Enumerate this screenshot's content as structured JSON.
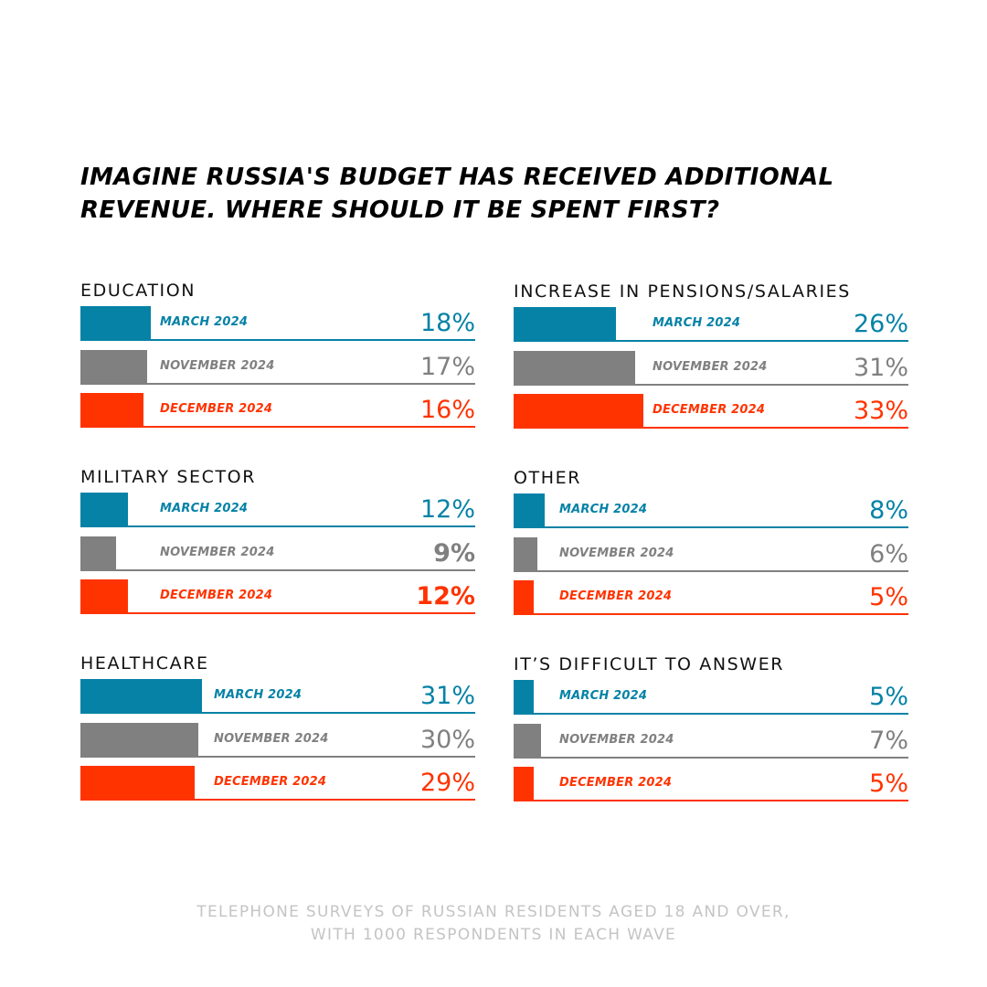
{
  "title": {
    "line1": "IMAGINE RUSSIA'S BUDGET HAS RECEIVED ADDITIONAL",
    "line2": "REVENUE. WHERE SHOULD IT BE SPENT FIRST?"
  },
  "colors": {
    "march": "#0582a6",
    "november": "#808080",
    "december": "#ff3300"
  },
  "chart_data": {
    "type": "bar",
    "orientation": "horizontal",
    "units": "%",
    "series_names": [
      "MARCH 2024",
      "NOVEMBER 2024",
      "DECEMBER 2024"
    ],
    "panels": [
      {
        "title": "EDUCATION",
        "label_offset": "near",
        "rows": [
          {
            "label": "MARCH 2024",
            "value": 18,
            "display": "18%",
            "bold": false
          },
          {
            "label": "NOVEMBER 2024",
            "value": 17,
            "display": "17%",
            "bold": false
          },
          {
            "label": "DECEMBER 2024",
            "value": 16,
            "display": "16%",
            "bold": false
          }
        ]
      },
      {
        "title": "INCREASE IN PENSIONS/SALARIES",
        "label_offset": "far",
        "rows": [
          {
            "label": "MARCH 2024",
            "value": 26,
            "display": "26%",
            "bold": false
          },
          {
            "label": "NOVEMBER 2024",
            "value": 31,
            "display": "31%",
            "bold": false
          },
          {
            "label": "DECEMBER 2024",
            "value": 33,
            "display": "33%",
            "bold": false
          }
        ]
      },
      {
        "title": "MILITARY SECTOR",
        "label_offset": "near",
        "rows": [
          {
            "label": "MARCH 2024",
            "value": 12,
            "display": "12%",
            "bold": false
          },
          {
            "label": "NOVEMBER 2024",
            "value": 9,
            "display": "9%",
            "bold": true
          },
          {
            "label": "DECEMBER 2024",
            "value": 12,
            "display": "12%",
            "bold": true
          }
        ]
      },
      {
        "title": "OTHER",
        "label_offset": "short",
        "rows": [
          {
            "label": "MARCH 2024",
            "value": 8,
            "display": "8%",
            "bold": false
          },
          {
            "label": "NOVEMBER 2024",
            "value": 6,
            "display": "6%",
            "bold": false
          },
          {
            "label": "DECEMBER 2024",
            "value": 5,
            "display": "5%",
            "bold": false
          }
        ]
      },
      {
        "title": "HEALTHCARE",
        "label_offset": "mid",
        "rows": [
          {
            "label": "MARCH 2024",
            "value": 31,
            "display": "31%",
            "bold": false
          },
          {
            "label": "NOVEMBER 2024",
            "value": 30,
            "display": "30%",
            "bold": false
          },
          {
            "label": "DECEMBER 2024",
            "value": 29,
            "display": "29%",
            "bold": false
          }
        ]
      },
      {
        "title": "IT’S DIFFICULT TO ANSWER",
        "label_offset": "short",
        "rows": [
          {
            "label": "MARCH 2024",
            "value": 5,
            "display": "5%",
            "bold": false
          },
          {
            "label": "NOVEMBER 2024",
            "value": 7,
            "display": "7%",
            "bold": false
          },
          {
            "label": "DECEMBER 2024",
            "value": 5,
            "display": "5%",
            "bold": false
          }
        ]
      }
    ]
  },
  "footnote": {
    "line1": "TELEPHONE SURVEYS OF RUSSIAN RESIDENTS AGED 18 AND OVER,",
    "line2": "WITH 1000 RESPONDENTS IN EACH WAVE"
  }
}
